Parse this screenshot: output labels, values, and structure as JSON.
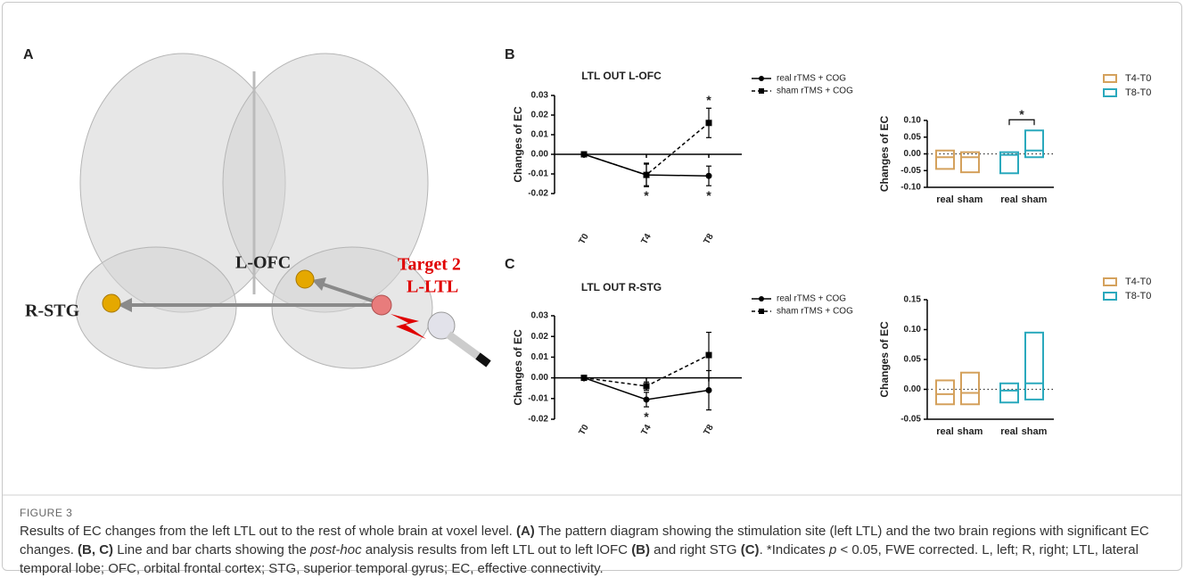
{
  "panel_labels": [
    "A",
    "B",
    "C"
  ],
  "diagram": {
    "r_stg": "R-STG",
    "l_ofc": "L-OFC",
    "target": "Target 2",
    "site": "L-LTL"
  },
  "chart_data": [
    {
      "type": "line",
      "title": "LTL OUT L-OFC",
      "ylabel": "Changes of EC",
      "categories": [
        "T0",
        "T4",
        "T8"
      ],
      "ylim": [
        -0.02,
        0.03
      ],
      "yticks": [
        0.03,
        0.02,
        0.01,
        {
          "value": 0,
          "label": "0.00"
        },
        -0.01,
        -0.02
      ],
      "series": [
        {
          "name": "real rTMS + COG",
          "color": "#000000",
          "line_style": "solid",
          "marker": "circle",
          "values": [
            0,
            -0.0105,
            -0.011
          ],
          "errors": [
            0,
            0.0055,
            0.005
          ],
          "marks": [
            null,
            "*",
            "*"
          ]
        },
        {
          "name": "sham rTMS + COG",
          "color": "#000000",
          "line_style": "dashed",
          "marker": "square",
          "values": [
            0,
            -0.0105,
            0.016
          ],
          "errors": [
            0,
            0.006,
            0.0075
          ],
          "marks": [
            null,
            null,
            "*"
          ]
        }
      ]
    },
    {
      "type": "floating_bar",
      "ylabel": "Changes of EC",
      "categories": [
        "real",
        "sham"
      ],
      "ylim": [
        -0.1,
        0.1
      ],
      "yticks": [
        {
          "value": 0.1,
          "label": "0.10"
        },
        0.05,
        {
          "value": 0,
          "label": "0.00"
        },
        -0.05,
        {
          "value": -0.1,
          "label": "-0.10"
        }
      ],
      "series": [
        {
          "name": "T4-T0",
          "color": "#d4a15c",
          "low": [
            -0.045,
            -0.055
          ],
          "high": [
            0.01,
            0.005
          ],
          "mean": [
            -0.01,
            -0.01
          ]
        },
        {
          "name": "T8-T0",
          "color": "#2aa9bd",
          "low": [
            -0.058,
            -0.01
          ],
          "high": [
            0.005,
            0.07
          ],
          "mean": [
            -0.003,
            0.01
          ]
        }
      ],
      "annotation": "*"
    },
    {
      "type": "line",
      "title": "LTL OUT R-STG",
      "ylabel": "Changes of EC",
      "categories": [
        "T0",
        "T4",
        "T8"
      ],
      "ylim": [
        -0.02,
        0.03
      ],
      "yticks": [
        0.03,
        0.02,
        0.01,
        {
          "value": 0,
          "label": "0.00"
        },
        -0.01,
        -0.02
      ],
      "series": [
        {
          "name": "real rTMS + COG",
          "color": "#000000",
          "line_style": "solid",
          "marker": "circle",
          "values": [
            0,
            -0.0105,
            -0.006
          ],
          "errors": [
            0,
            0.0035,
            0.0095
          ],
          "marks": [
            null,
            "*",
            null
          ]
        },
        {
          "name": "sham rTMS + COG",
          "color": "#000000",
          "line_style": "dashed",
          "marker": "square",
          "values": [
            0,
            -0.004,
            0.011
          ],
          "errors": [
            0,
            0.002,
            0.011
          ]
        }
      ]
    },
    {
      "type": "floating_bar",
      "ylabel": "Changes of EC",
      "categories": [
        "real",
        "sham"
      ],
      "ylim": [
        -0.05,
        0.15
      ],
      "yticks": [
        0.15,
        {
          "value": 0.1,
          "label": "0.10"
        },
        0.05,
        {
          "value": 0,
          "label": "0.00"
        },
        -0.05
      ],
      "series": [
        {
          "name": "T4-T0",
          "color": "#d4a15c",
          "low": [
            -0.025,
            -0.025
          ],
          "high": [
            0.015,
            0.028
          ],
          "mean": [
            -0.008,
            -0.006
          ]
        },
        {
          "name": "T8-T0",
          "color": "#2aa9bd",
          "low": [
            -0.022,
            -0.017
          ],
          "high": [
            0.01,
            0.095
          ],
          "mean": [
            -0.002,
            0.01
          ]
        }
      ]
    }
  ],
  "caption": {
    "label": "FIGURE 3",
    "runs": [
      {
        "text": "Results of EC changes from the left LTL out to the rest of whole brain at voxel level. "
      },
      {
        "text": "(A)",
        "bold": true
      },
      {
        "text": " The pattern diagram showing the stimulation site (left LTL) and the two brain regions with significant EC changes. "
      },
      {
        "text": "(B, C)",
        "bold": true
      },
      {
        "text": " Line and bar charts showing the "
      },
      {
        "text": "post-hoc",
        "italic": true
      },
      {
        "text": " analysis results from left LTL out to left lOFC "
      },
      {
        "text": "(B)",
        "bold": true
      },
      {
        "text": " and right STG "
      },
      {
        "text": "(C)",
        "bold": true
      },
      {
        "text": ". *Indicates "
      },
      {
        "text": "p",
        "italic": true
      },
      {
        "text": " < 0.05, FWE corrected. L, left; R, right; LTL, lateral temporal lobe; OFC, orbital frontal cortex; STG, superior temporal gyrus; EC, effective connectivity."
      }
    ]
  }
}
